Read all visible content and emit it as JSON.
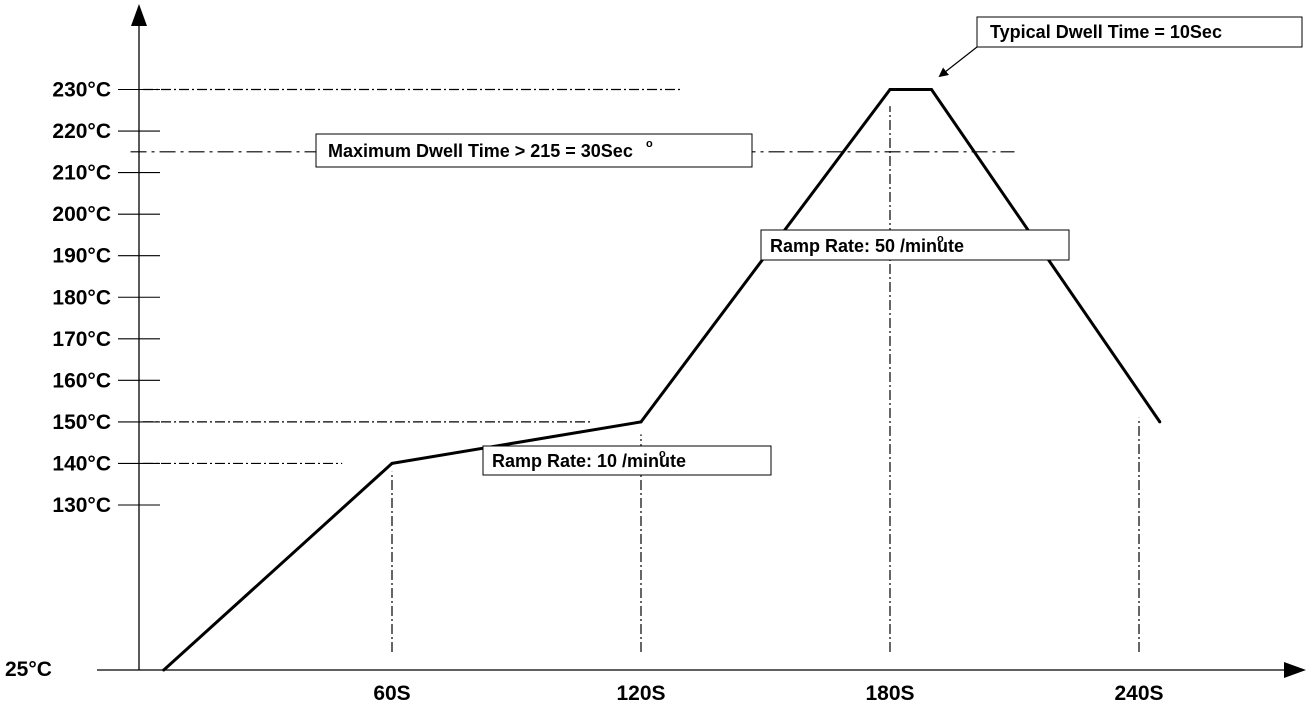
{
  "chart_data": {
    "type": "line",
    "title": "",
    "xlabel": "",
    "ylabel": "",
    "x_unit": "S",
    "y_unit": "°C",
    "x_ticks": [
      {
        "value": 60,
        "label": "60S"
      },
      {
        "value": 120,
        "label": "120S"
      },
      {
        "value": 180,
        "label": "180S"
      },
      {
        "value": 240,
        "label": "240S"
      }
    ],
    "y_ticks": [
      {
        "value": 130,
        "label": "130°C"
      },
      {
        "value": 140,
        "label": "140°C"
      },
      {
        "value": 150,
        "label": "150°C"
      },
      {
        "value": 160,
        "label": "160°C"
      },
      {
        "value": 170,
        "label": "170°C"
      },
      {
        "value": 180,
        "label": "180°C"
      },
      {
        "value": 190,
        "label": "190°C"
      },
      {
        "value": 200,
        "label": "200°C"
      },
      {
        "value": 210,
        "label": "210°C"
      },
      {
        "value": 220,
        "label": "220°C"
      },
      {
        "value": 230,
        "label": "230°C"
      }
    ],
    "y_origin_label": "25°C",
    "series": [
      {
        "points": [
          {
            "x": 5,
            "y": 25
          },
          {
            "x": 60,
            "y": 140
          },
          {
            "x": 120,
            "y": 150
          },
          {
            "x": 180,
            "y": 230
          },
          {
            "x": 190,
            "y": 230
          },
          {
            "x": 245,
            "y": 150
          }
        ]
      }
    ],
    "reference_lines": {
      "horizontal": [
        {
          "y": 230,
          "x_start": 0,
          "x_end": 130
        },
        {
          "y": 215,
          "x_start": -3,
          "x_end": 210
        },
        {
          "y": 150,
          "x_start": 0,
          "x_end": 108
        },
        {
          "y": 140,
          "x_start": 0,
          "x_end": 48
        }
      ],
      "vertical": [
        {
          "x": 60,
          "y_start": 25,
          "y_end": 138
        },
        {
          "x": 120,
          "y_start": 25,
          "y_end": 147
        },
        {
          "x": 180,
          "y_start": 25,
          "y_end": 226
        },
        {
          "x": 240,
          "y_start": 25,
          "y_end": 151
        }
      ]
    },
    "annotations": [
      {
        "text": "Typical Dwell Time  = 10Sec"
      },
      {
        "text": "Maximum Dwell Time  > 215  = 30Sec"
      },
      {
        "text": "Ramp Rate:  50 /minute"
      },
      {
        "text": "Ramp Rate:  10 /minute"
      }
    ],
    "grid": false,
    "legend": "none"
  }
}
